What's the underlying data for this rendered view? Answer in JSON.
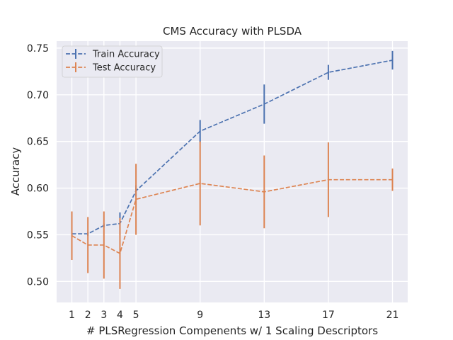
{
  "chart_data": {
    "type": "line",
    "title": "CMS Accuracy with PLSDA",
    "xlabel": "# PLSRegression Compenents w/ 1 Scaling Descriptors",
    "ylabel": "Accuracy",
    "x": [
      1,
      2,
      3,
      4,
      5,
      9,
      13,
      17,
      21
    ],
    "xticks": [
      1,
      2,
      3,
      4,
      5,
      9,
      13,
      17,
      21
    ],
    "yticks": [
      0.5,
      0.55,
      0.6,
      0.65,
      0.7,
      0.75
    ],
    "ytick_labels": [
      "0.50",
      "0.55",
      "0.60",
      "0.65",
      "0.70",
      "0.75"
    ],
    "xlim": [
      0.05,
      21.95
    ],
    "ylim": [
      0.4775,
      0.7575
    ],
    "grid": true,
    "legend_position": "top-left",
    "series": [
      {
        "name": "Train Accuracy",
        "color": "#4c72b0",
        "values": [
          0.551,
          0.551,
          0.56,
          0.562,
          0.597,
          0.661,
          0.69,
          0.724,
          0.737
        ],
        "errors": [
          0.003,
          0.002,
          0.002,
          0.012,
          0.006,
          0.012,
          0.021,
          0.008,
          0.01
        ]
      },
      {
        "name": "Test Accuracy",
        "color": "#dd8452",
        "values": [
          0.549,
          0.539,
          0.539,
          0.53,
          0.588,
          0.605,
          0.596,
          0.609,
          0.609
        ],
        "errors": [
          0.026,
          0.03,
          0.036,
          0.038,
          0.038,
          0.045,
          0.039,
          0.04,
          0.012
        ]
      }
    ]
  }
}
